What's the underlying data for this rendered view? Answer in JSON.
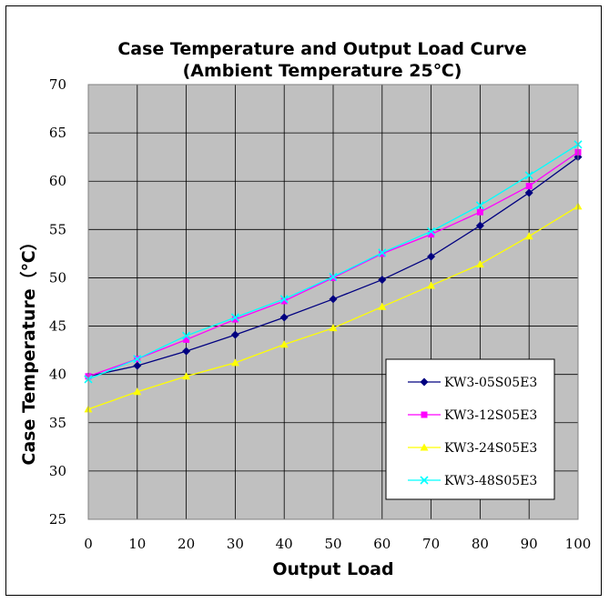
{
  "chart_data": {
    "type": "line",
    "title": "Case Temperature and Output Load Curve",
    "subtitle": "(Ambient Temperature 25℃)",
    "xlabel": "Output Load",
    "ylabel": "Case Temperature（℃）",
    "x": [
      0,
      10,
      20,
      30,
      40,
      50,
      60,
      70,
      80,
      90,
      100
    ],
    "xlim": [
      0,
      100
    ],
    "ylim": [
      25,
      70
    ],
    "yticks": [
      25,
      30,
      35,
      40,
      45,
      50,
      55,
      60,
      65,
      70
    ],
    "grid": true,
    "legend_position": "bottom-right",
    "plot_background": "#c0c0c0",
    "series": [
      {
        "name": "KW3-05S05E3",
        "color": "#000080",
        "marker": "diamond",
        "values": [
          39.8,
          40.9,
          42.4,
          44.1,
          45.9,
          47.8,
          49.8,
          52.2,
          55.4,
          58.8,
          62.5
        ]
      },
      {
        "name": "KW3-12S05E3",
        "color": "#ff00ff",
        "marker": "square",
        "values": [
          39.8,
          41.6,
          43.6,
          45.7,
          47.6,
          50.0,
          52.5,
          54.5,
          56.8,
          59.5,
          63.0
        ]
      },
      {
        "name": "KW3-24S05E3",
        "color": "#ffff00",
        "marker": "triangle",
        "values": [
          36.4,
          38.2,
          39.8,
          41.2,
          43.1,
          44.8,
          47.0,
          49.2,
          51.4,
          54.3,
          57.4
        ]
      },
      {
        "name": "KW3-48S05E3",
        "color": "#00ffff",
        "marker": "x",
        "values": [
          39.5,
          41.6,
          44.0,
          45.9,
          47.8,
          50.1,
          52.6,
          54.8,
          57.5,
          60.6,
          63.8
        ]
      }
    ]
  }
}
